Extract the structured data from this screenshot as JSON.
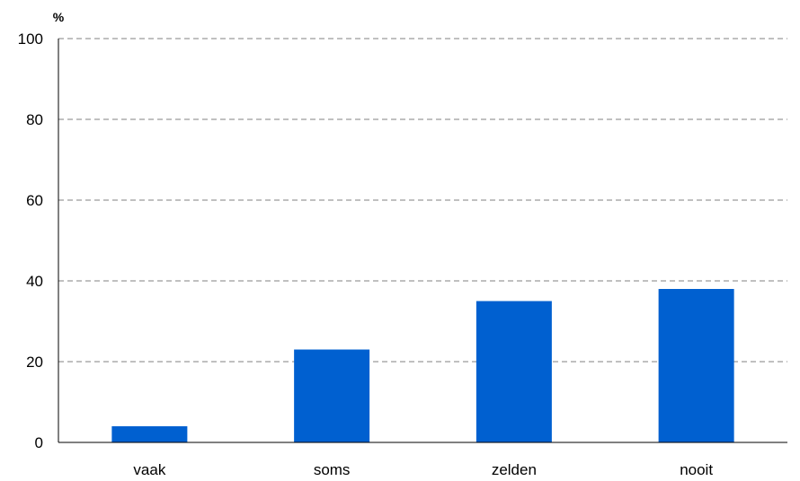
{
  "chart_data": {
    "type": "bar",
    "title": "",
    "xlabel": "",
    "ylabel": "%",
    "categories": [
      "vaak",
      "soms",
      "zelden",
      "nooit"
    ],
    "values": [
      4,
      23,
      35,
      38
    ],
    "ylim": [
      0,
      100
    ],
    "yticks": [
      0,
      20,
      40,
      60,
      80,
      100
    ],
    "grid": true,
    "grid_style": "dashed",
    "legend": "none",
    "bar_color": "#0060d0"
  }
}
